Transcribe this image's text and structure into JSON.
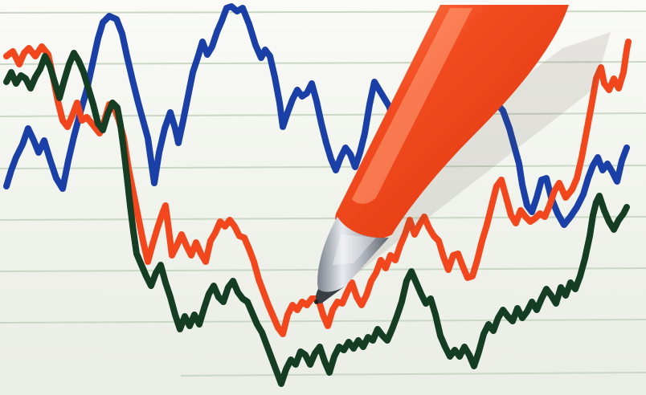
{
  "scene": {
    "paper_color": "#f4f5ef",
    "rule_line_color": "#c9d8c4",
    "series": [
      {
        "color": "#1a3fa6",
        "shade": "#2a52c0"
      },
      {
        "color": "#f2461c",
        "shade": "#ff6a3a"
      },
      {
        "color": "#143d24",
        "shade": "#1f5a35"
      }
    ],
    "pen": {
      "barrel_color": "#f24a1f",
      "barrel_highlight": "#ff8a5c",
      "tip_metal_color": "#b8bcc4"
    }
  }
}
